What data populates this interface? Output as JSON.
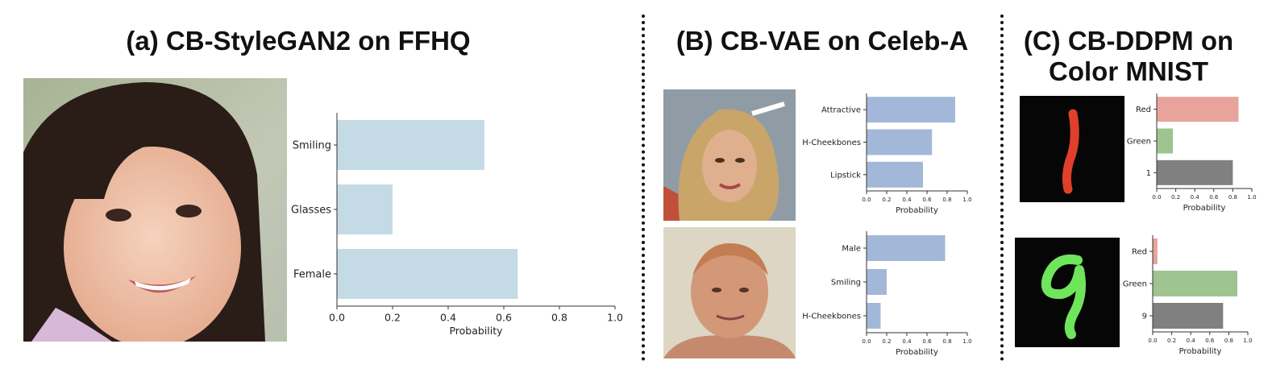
{
  "panels": [
    {
      "id": "a",
      "title": "(a) CB-StyleGAN2 on FFHQ"
    },
    {
      "id": "b",
      "title": "(B) CB-VAE on Celeb-A"
    },
    {
      "id": "c",
      "title_line1": "(C) CB-DDPM on",
      "title_line2": "Color MNIST"
    }
  ],
  "colors": {
    "ffhq_bar": "#c4dbe5",
    "celeba_bar": "#a3b8d8",
    "red_bar": "#e8a49b",
    "green_bar": "#9fc48f",
    "digit_bar": "#808080",
    "digit1_stroke": "#e0402a",
    "digit9_stroke": "#6ee55a"
  },
  "chart_data": [
    {
      "type": "bar",
      "orientation": "horizontal",
      "panel": "a",
      "categories": [
        "Smiling",
        "Glasses",
        "Female"
      ],
      "values": [
        0.53,
        0.2,
        0.65
      ],
      "xlabel": "Probability",
      "xlim": [
        0,
        1
      ],
      "xticks": [
        "0.0",
        "0.2",
        "0.4",
        "0.6",
        "0.8",
        "1.0"
      ]
    },
    {
      "type": "bar",
      "orientation": "horizontal",
      "panel": "b-top",
      "categories": [
        "Attractive",
        "H-Cheekbones",
        "Lipstick"
      ],
      "values": [
        0.88,
        0.65,
        0.56
      ],
      "xlabel": "Probability",
      "xlim": [
        0,
        1
      ],
      "xticks": [
        "0.0",
        "0.2",
        "0.4",
        "0.6",
        "0.8",
        "1.0"
      ]
    },
    {
      "type": "bar",
      "orientation": "horizontal",
      "panel": "b-bottom",
      "categories": [
        "Male",
        "Smiling",
        "H-Cheekbones"
      ],
      "values": [
        0.78,
        0.2,
        0.14
      ],
      "xlabel": "Probability",
      "xlim": [
        0,
        1
      ],
      "xticks": [
        "0.0",
        "0.2",
        "0.4",
        "0.6",
        "0.8",
        "1.0"
      ]
    },
    {
      "type": "bar",
      "orientation": "horizontal",
      "panel": "c-top",
      "categories": [
        "Red",
        "Green",
        "1"
      ],
      "values": [
        0.86,
        0.17,
        0.8
      ],
      "xlabel": "Probability",
      "xlim": [
        0,
        1
      ],
      "xticks": [
        "0.0",
        "0.2",
        "0.4",
        "0.6",
        "0.8",
        "1.0"
      ]
    },
    {
      "type": "bar",
      "orientation": "horizontal",
      "panel": "c-bottom",
      "categories": [
        "Red",
        "Green",
        "9"
      ],
      "values": [
        0.05,
        0.89,
        0.74
      ],
      "xlabel": "Probability",
      "xlim": [
        0,
        1
      ],
      "xticks": [
        "0.0",
        "0.2",
        "0.4",
        "0.6",
        "0.8",
        "1.0"
      ]
    }
  ]
}
